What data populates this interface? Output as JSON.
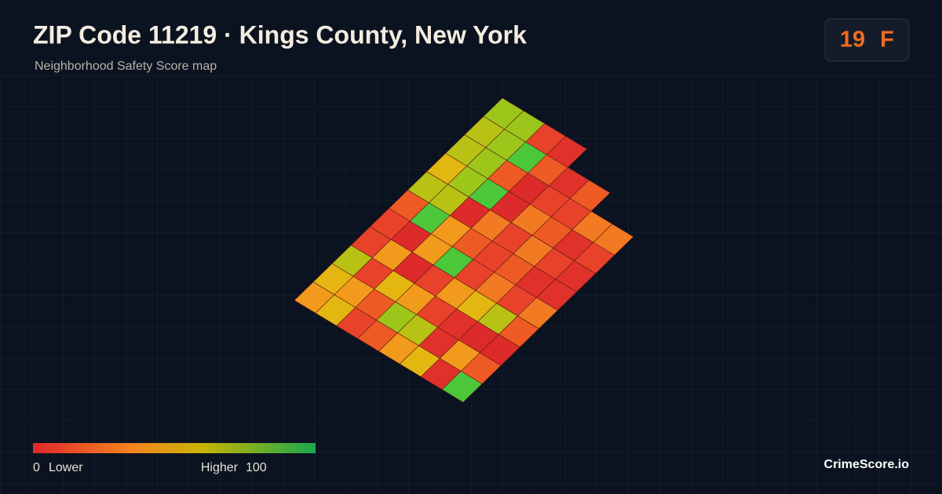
{
  "header": {
    "title": "ZIP Code 11219 · Kings County, New York",
    "subtitle": "Neighborhood Safety Score map"
  },
  "score": {
    "value": "19",
    "grade": "F"
  },
  "legend": {
    "min": 0,
    "min_label": "Lower",
    "max_label": "Higher",
    "max": 100
  },
  "brand": "CrimeScore.io"
}
